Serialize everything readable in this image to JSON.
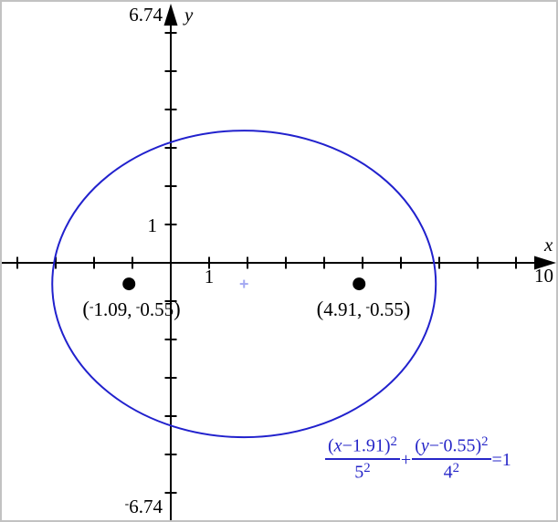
{
  "axes": {
    "x_letter": "x",
    "y_letter": "y",
    "ymax_label": "6.74",
    "ymin_label_segments": [
      {
        "t": "-",
        "s": "neg"
      },
      {
        "t": "6.74"
      }
    ],
    "y_unit_tick_label": "1",
    "x_unit_tick_label": "1",
    "xmax_tick_label": "10"
  },
  "colors": {
    "curve_blue": "#2121cd",
    "equation_blue": "#2626c8",
    "center_marker": "#a3a8f2",
    "axis_black": "#000000",
    "border_grey": "#c2c2c2"
  },
  "foci_labels": {
    "left_segments": [
      {
        "t": "(",
        "s": "paren"
      },
      {
        "t": "-",
        "s": "neg"
      },
      {
        "t": "1.09,"
      },
      {
        "t": " "
      },
      {
        "t": "-",
        "s": "neg"
      },
      {
        "t": "0.55"
      },
      {
        "t": ")",
        "s": "paren"
      }
    ],
    "right_segments": [
      {
        "t": "(",
        "s": "paren"
      },
      {
        "t": "4.91,"
      },
      {
        "t": " "
      },
      {
        "t": "-",
        "s": "neg"
      },
      {
        "t": "0.55"
      },
      {
        "t": ")",
        "s": "paren"
      }
    ]
  },
  "equation": {
    "frac1": {
      "num": [
        {
          "t": "("
        },
        {
          "t": "x",
          "s": "var"
        },
        {
          "t": "−1.91)"
        },
        {
          "t": "2",
          "s": "sup"
        }
      ],
      "den": [
        {
          "t": "5"
        },
        {
          "t": "2",
          "s": "sup"
        }
      ]
    },
    "operator": "+",
    "frac2": {
      "num": [
        {
          "t": "("
        },
        {
          "t": "y",
          "s": "var"
        },
        {
          "t": "−"
        },
        {
          "t": "-",
          "s": "neg"
        },
        {
          "t": "0.55)"
        },
        {
          "t": "2",
          "s": "sup"
        }
      ],
      "den": [
        {
          "t": "4"
        },
        {
          "t": "2",
          "s": "sup"
        }
      ]
    },
    "result": "=1"
  },
  "chart_data": {
    "type": "line",
    "curve": "ellipse",
    "title": "",
    "equation_text": "(x−1.91)²/5² + (y−⁻0.55)²/4² = 1",
    "center": [
      1.91,
      -0.55
    ],
    "semi_axis_a": 5,
    "semi_axis_b": 4,
    "foci": [
      [
        -1.09,
        -0.55
      ],
      [
        4.91,
        -0.55
      ]
    ],
    "axis_ranges": {
      "xmax": 10,
      "ymax": 6.74,
      "ymin": -6.74,
      "tick_step": 1,
      "x_tick_range": [
        -4,
        9
      ],
      "y_tick_range": [
        -6,
        6
      ],
      "grid": false,
      "legend": "none"
    }
  }
}
